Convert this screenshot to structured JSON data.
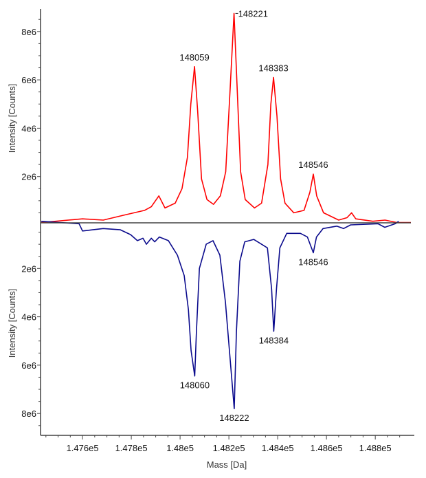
{
  "chart_data": {
    "type": "line",
    "layout": "mirror",
    "xlabel": "Mass [Da]",
    "xlim": [
      147428,
      148946
    ],
    "xticks": [
      147600,
      147800,
      148000,
      148200,
      148400,
      148600,
      148800
    ],
    "xtick_labels": [
      "1.476e5",
      "1.478e5",
      "1.48e5",
      "1.482e5",
      "1.484e5",
      "1.486e5",
      "1.488e5"
    ],
    "grid": false,
    "panels": [
      {
        "position": "top",
        "ylabel": "Intensity [Counts]",
        "ylim": [
          0,
          8900000
        ],
        "yticks": [
          2000000,
          4000000,
          6000000,
          8000000
        ],
        "ytick_labels": [
          "2e6",
          "4e6",
          "6e6",
          "8e6"
        ],
        "series": [
          {
            "color": "#ff0000",
            "x": [
              147431,
              147600,
              147685,
              147769,
              147854,
              147882,
              147913,
              147938,
              147980,
              148008,
              148030,
              148044,
              148059,
              148072,
              148088,
              148110,
              148137,
              148165,
              148187,
              148205,
              148221,
              148233,
              148248,
              148267,
              148305,
              148334,
              148360,
              148372,
              148383,
              148397,
              148412,
              148430,
              148466,
              148508,
              148532,
              148546,
              148560,
              148588,
              148650,
              148684,
              148703,
              148720,
              148790,
              148840,
              148888,
              148946
            ],
            "y": [
              100000,
              250000,
              200000,
              400000,
              600000,
              750000,
              1200000,
              700000,
              900000,
              1500000,
              2800000,
              5000000,
              6550000,
              4700000,
              1900000,
              1050000,
              850000,
              1200000,
              2200000,
              5600000,
              8750000,
              5900000,
              2200000,
              1050000,
              700000,
              900000,
              2500000,
              5000000,
              6100000,
              4500000,
              1900000,
              900000,
              500000,
              600000,
              1350000,
              2100000,
              1200000,
              500000,
              200000,
              300000,
              500000,
              250000,
              150000,
              200000,
              100000,
              100000
            ]
          }
        ],
        "peak_labels": [
          {
            "mass": 148059,
            "intensity": 6550000,
            "text": "148059"
          },
          {
            "mass": 148221,
            "intensity": 8750000,
            "text": "148221"
          },
          {
            "mass": 148383,
            "intensity": 6100000,
            "text": "148383"
          },
          {
            "mass": 148546,
            "intensity": 2100000,
            "text": "148546"
          }
        ]
      },
      {
        "position": "bottom",
        "ylabel": "Intensity [Counts]",
        "ylim": [
          0,
          8900000
        ],
        "yticks": [
          2000000,
          4000000,
          6000000,
          8000000
        ],
        "ytick_labels": [
          "2e6",
          "4e6",
          "6e6",
          "8e6"
        ],
        "series": [
          {
            "color": "#0a0a8c",
            "x": [
              147431,
              147586,
              147600,
              147642,
              147685,
              147755,
              147797,
              147825,
              147848,
              147862,
              147882,
              147896,
              147915,
              147952,
              147989,
              148017,
              148034,
              148045,
              148060,
              148067,
              148079,
              148107,
              148135,
              148163,
              148186,
              148222,
              148231,
              148245,
              148265,
              148302,
              148358,
              148375,
              148384,
              148395,
              148409,
              148437,
              148493,
              148522,
              148546,
              148559,
              148586,
              148642,
              148670,
              148699,
              148811,
              148839,
              148882,
              148896
            ],
            "y": [
              50000,
              150000,
              450000,
              400000,
              350000,
              400000,
              600000,
              850000,
              750000,
              1000000,
              750000,
              900000,
              700000,
              850000,
              1450000,
              2300000,
              3700000,
              5400000,
              6450000,
              4600000,
              2000000,
              1000000,
              850000,
              1450000,
              3400000,
              7800000,
              4600000,
              1700000,
              900000,
              800000,
              1150000,
              2850000,
              4600000,
              2850000,
              1150000,
              550000,
              550000,
              700000,
              1350000,
              700000,
              350000,
              250000,
              350000,
              200000,
              150000,
              300000,
              150000,
              50000
            ]
          }
        ],
        "peak_labels": [
          {
            "mass": 148060,
            "intensity": 6450000,
            "text": "148060"
          },
          {
            "mass": 148222,
            "intensity": 7800000,
            "text": "148222"
          },
          {
            "mass": 148384,
            "intensity": 4600000,
            "text": "148384"
          },
          {
            "mass": 148546,
            "intensity": 1350000,
            "text": "148546"
          }
        ]
      }
    ]
  }
}
